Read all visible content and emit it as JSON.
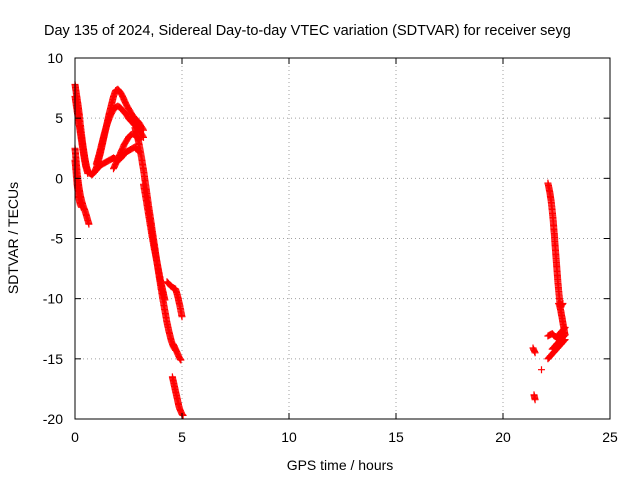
{
  "chart_data": {
    "type": "scatter",
    "title": "Day 135 of 2024, Sidereal Day-to-day VTEC variation (SDTVAR) for receiver seyg",
    "xlabel": "GPS time / hours",
    "ylabel": "SDTVAR / TECUs",
    "xlim": [
      0,
      25
    ],
    "ylim": [
      -20,
      10
    ],
    "xticks": [
      0,
      5,
      10,
      15,
      20,
      25
    ],
    "yticks": [
      -20,
      -15,
      -10,
      -5,
      0,
      5,
      10
    ],
    "grid": true,
    "marker": "+",
    "color": "#ff0000",
    "series": [
      {
        "name": "seyg",
        "segments": [
          {
            "x": [
              0.0,
              0.05,
              0.1,
              0.15,
              0.2,
              0.25,
              0.3,
              0.35,
              0.4,
              0.45,
              0.5,
              0.55,
              0.6
            ],
            "y": [
              7.8,
              7.2,
              6.6,
              6.0,
              5.3,
              4.5,
              3.7,
              3.0,
              2.4,
              1.8,
              1.3,
              0.9,
              0.6
            ]
          },
          {
            "x": [
              0.0,
              0.05,
              0.1,
              0.15,
              0.2,
              0.25,
              0.3,
              0.35,
              0.4,
              0.45,
              0.5,
              0.55,
              0.6
            ],
            "y": [
              6.8,
              6.2,
              5.6,
              5.0,
              4.4,
              3.8,
              3.2,
              2.6,
              2.0,
              1.5,
              1.0,
              0.7,
              0.4
            ]
          },
          {
            "x": [
              0.0,
              0.05,
              0.1,
              0.15,
              0.2,
              0.25,
              0.3,
              0.35,
              0.4,
              0.45,
              0.5,
              0.55,
              0.6,
              0.65
            ],
            "y": [
              2.5,
              1.5,
              0.5,
              -0.3,
              -0.9,
              -1.4,
              -1.8,
              -2.1,
              -2.4,
              -2.6,
              -2.9,
              -3.2,
              -3.5,
              -3.8
            ]
          },
          {
            "x": [
              0.0,
              0.05,
              0.1,
              0.15,
              0.2,
              0.25,
              0.3
            ],
            "y": [
              1.5,
              0.5,
              -0.5,
              -1.2,
              -1.8,
              -2.2,
              -2.4
            ]
          },
          {
            "x": [
              0.6,
              0.7,
              0.8,
              0.9,
              1.0,
              1.1,
              1.2,
              1.3,
              1.4,
              1.5,
              1.6,
              1.7,
              1.8,
              1.9,
              2.0,
              2.1,
              2.2,
              2.3,
              2.4,
              2.5,
              2.6,
              2.7,
              2.8,
              2.9,
              3.0,
              3.1,
              3.2
            ],
            "y": [
              0.6,
              0.4,
              0.3,
              0.5,
              0.9,
              1.5,
              2.2,
              3.0,
              3.8,
              4.6,
              5.4,
              6.1,
              6.8,
              7.3,
              7.4,
              7.2,
              6.9,
              6.5,
              6.1,
              5.8,
              5.5,
              5.2,
              5.0,
              4.8,
              4.6,
              4.3,
              4.0
            ]
          },
          {
            "x": [
              1.0,
              1.1,
              1.2,
              1.3,
              1.4,
              1.5,
              1.6,
              1.7,
              1.8,
              1.9,
              2.0,
              2.1,
              2.2,
              2.3,
              2.4,
              2.5,
              2.6,
              2.7,
              2.8,
              2.9,
              3.0,
              3.1,
              3.2
            ],
            "y": [
              1.2,
              1.8,
              2.5,
              3.2,
              3.9,
              4.5,
              5.0,
              5.4,
              5.7,
              5.9,
              6.0,
              5.9,
              5.7,
              5.5,
              5.3,
              5.0,
              4.8,
              4.6,
              4.4,
              4.2,
              4.0,
              3.7,
              3.4
            ]
          },
          {
            "x": [
              0.9,
              1.0,
              1.1,
              1.2,
              1.3,
              1.4,
              1.5,
              1.6,
              1.7,
              1.8,
              1.9,
              2.0,
              2.1,
              2.2,
              2.3,
              2.4,
              2.5,
              2.6,
              2.7,
              2.8,
              2.9,
              3.0
            ],
            "y": [
              0.5,
              0.7,
              0.9,
              1.1,
              1.2,
              1.3,
              1.4,
              1.5,
              1.6,
              1.7,
              1.6,
              1.5,
              1.6,
              1.8,
              2.0,
              2.2,
              2.3,
              2.4,
              2.5,
              2.6,
              2.4,
              2.2
            ]
          },
          {
            "x": [
              1.8,
              1.9,
              2.0,
              2.1,
              2.2,
              2.3,
              2.4,
              2.5,
              2.6,
              2.7,
              2.8,
              2.9,
              3.0
            ],
            "y": [
              0.8,
              1.2,
              1.6,
              2.0,
              2.4,
              2.8,
              3.1,
              3.4,
              3.6,
              3.7,
              3.6,
              3.4,
              3.2
            ]
          },
          {
            "x": [
              2.8,
              2.9,
              3.0,
              3.1,
              3.2,
              3.3,
              3.4,
              3.5,
              3.6,
              3.7,
              3.8,
              3.9,
              4.0,
              4.1,
              4.2,
              4.3,
              4.4,
              4.5,
              4.6,
              4.7
            ],
            "y": [
              4.2,
              3.6,
              2.8,
              1.8,
              0.7,
              -0.5,
              -1.8,
              -3.0,
              -4.2,
              -5.4,
              -6.6,
              -7.8,
              -8.9,
              -10.0,
              -11.0,
              -12.0,
              -12.8,
              -13.5,
              -14.0,
              -14.3
            ]
          },
          {
            "x": [
              3.2,
              3.3,
              3.4,
              3.5,
              3.6,
              3.7,
              3.8,
              3.9,
              4.0,
              4.1,
              4.2
            ],
            "y": [
              -0.5,
              -1.5,
              -2.6,
              -3.7,
              -4.8,
              -5.8,
              -6.7,
              -7.6,
              -8.5,
              -9.3,
              -10.1
            ]
          },
          {
            "x": [
              4.3,
              4.4,
              4.5,
              4.6,
              4.7,
              4.8,
              4.9,
              5.0
            ],
            "y": [
              -8.6,
              -8.8,
              -9.0,
              -9.1,
              -9.2,
              -9.8,
              -10.6,
              -11.5
            ]
          },
          {
            "x": [
              4.6,
              4.65,
              4.7,
              4.75,
              4.8,
              4.85,
              4.9,
              4.95
            ],
            "y": [
              -13.8,
              -14.0,
              -14.2,
              -14.4,
              -14.6,
              -14.8,
              -15.0,
              -15.1
            ]
          },
          {
            "x": [
              4.55,
              4.6,
              4.65,
              4.7,
              4.75,
              4.8,
              4.85,
              4.9,
              4.95,
              5.0,
              5.05
            ],
            "y": [
              -16.5,
              -16.9,
              -17.3,
              -17.7,
              -18.1,
              -18.5,
              -18.9,
              -19.2,
              -19.4,
              -19.6,
              -19.7
            ]
          },
          {
            "x": [
              21.4,
              21.45,
              21.5
            ],
            "y": [
              -14.1,
              -14.3,
              -14.5
            ]
          },
          {
            "x": [
              21.45,
              21.5
            ],
            "y": [
              -18.0,
              -18.4
            ]
          },
          {
            "x": [
              21.8
            ],
            "y": [
              -15.9
            ]
          },
          {
            "x": [
              22.1,
              22.15,
              22.2,
              22.25,
              22.3,
              22.35,
              22.4,
              22.45,
              22.5,
              22.55,
              22.6,
              22.65,
              22.7,
              22.75,
              22.8
            ],
            "y": [
              -0.4,
              -0.8,
              -1.3,
              -1.9,
              -2.7,
              -3.6,
              -4.7,
              -5.9,
              -7.1,
              -8.3,
              -9.3,
              -10.2,
              -10.7,
              -10.5,
              -10.4
            ]
          },
          {
            "x": [
              22.6,
              22.65,
              22.7,
              22.75,
              22.8,
              22.85,
              22.9
            ],
            "y": [
              -10.4,
              -10.6,
              -11.0,
              -11.5,
              -12.0,
              -12.5,
              -13.0
            ]
          },
          {
            "x": [
              22.1,
              22.2,
              22.3,
              22.4,
              22.5,
              22.6,
              22.7,
              22.8,
              22.9
            ],
            "y": [
              -13.1,
              -13.0,
              -12.9,
              -13.1,
              -13.2,
              -13.0,
              -12.8,
              -12.6,
              -12.4
            ]
          },
          {
            "x": [
              22.1,
              22.2,
              22.3,
              22.4,
              22.5,
              22.6,
              22.7,
              22.8,
              22.9
            ],
            "y": [
              -15.0,
              -14.8,
              -14.6,
              -14.4,
              -14.2,
              -14.0,
              -13.8,
              -13.6,
              -13.4
            ]
          },
          {
            "x": [
              22.3,
              22.4,
              22.5,
              22.6,
              22.7,
              22.8,
              22.9
            ],
            "y": [
              -14.2,
              -14.0,
              -13.8,
              -13.6,
              -13.4,
              -13.2,
              -13.0
            ]
          }
        ]
      }
    ]
  }
}
